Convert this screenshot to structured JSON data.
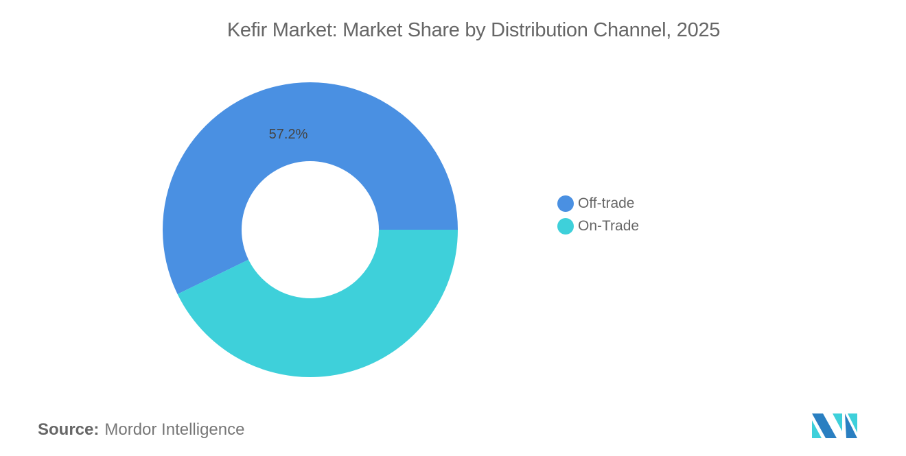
{
  "chart_data": {
    "type": "pie",
    "variant": "donut",
    "title": "Kefir Market: Market Share by Distribution Channel, 2025",
    "slices": [
      {
        "label": "Off-trade",
        "value": 57.2,
        "color": "#4A90E2",
        "data_label": "57.2%"
      },
      {
        "label": "On-Trade",
        "value": 42.8,
        "color": "#3ED0DA",
        "data_label": ""
      }
    ],
    "legend_position": "right"
  },
  "source": {
    "label": "Source:",
    "value": "Mordor Intelligence"
  },
  "logo": {
    "name": "Mordor Intelligence logo",
    "colors": [
      "#2A7FC1",
      "#3ED0DA"
    ]
  }
}
